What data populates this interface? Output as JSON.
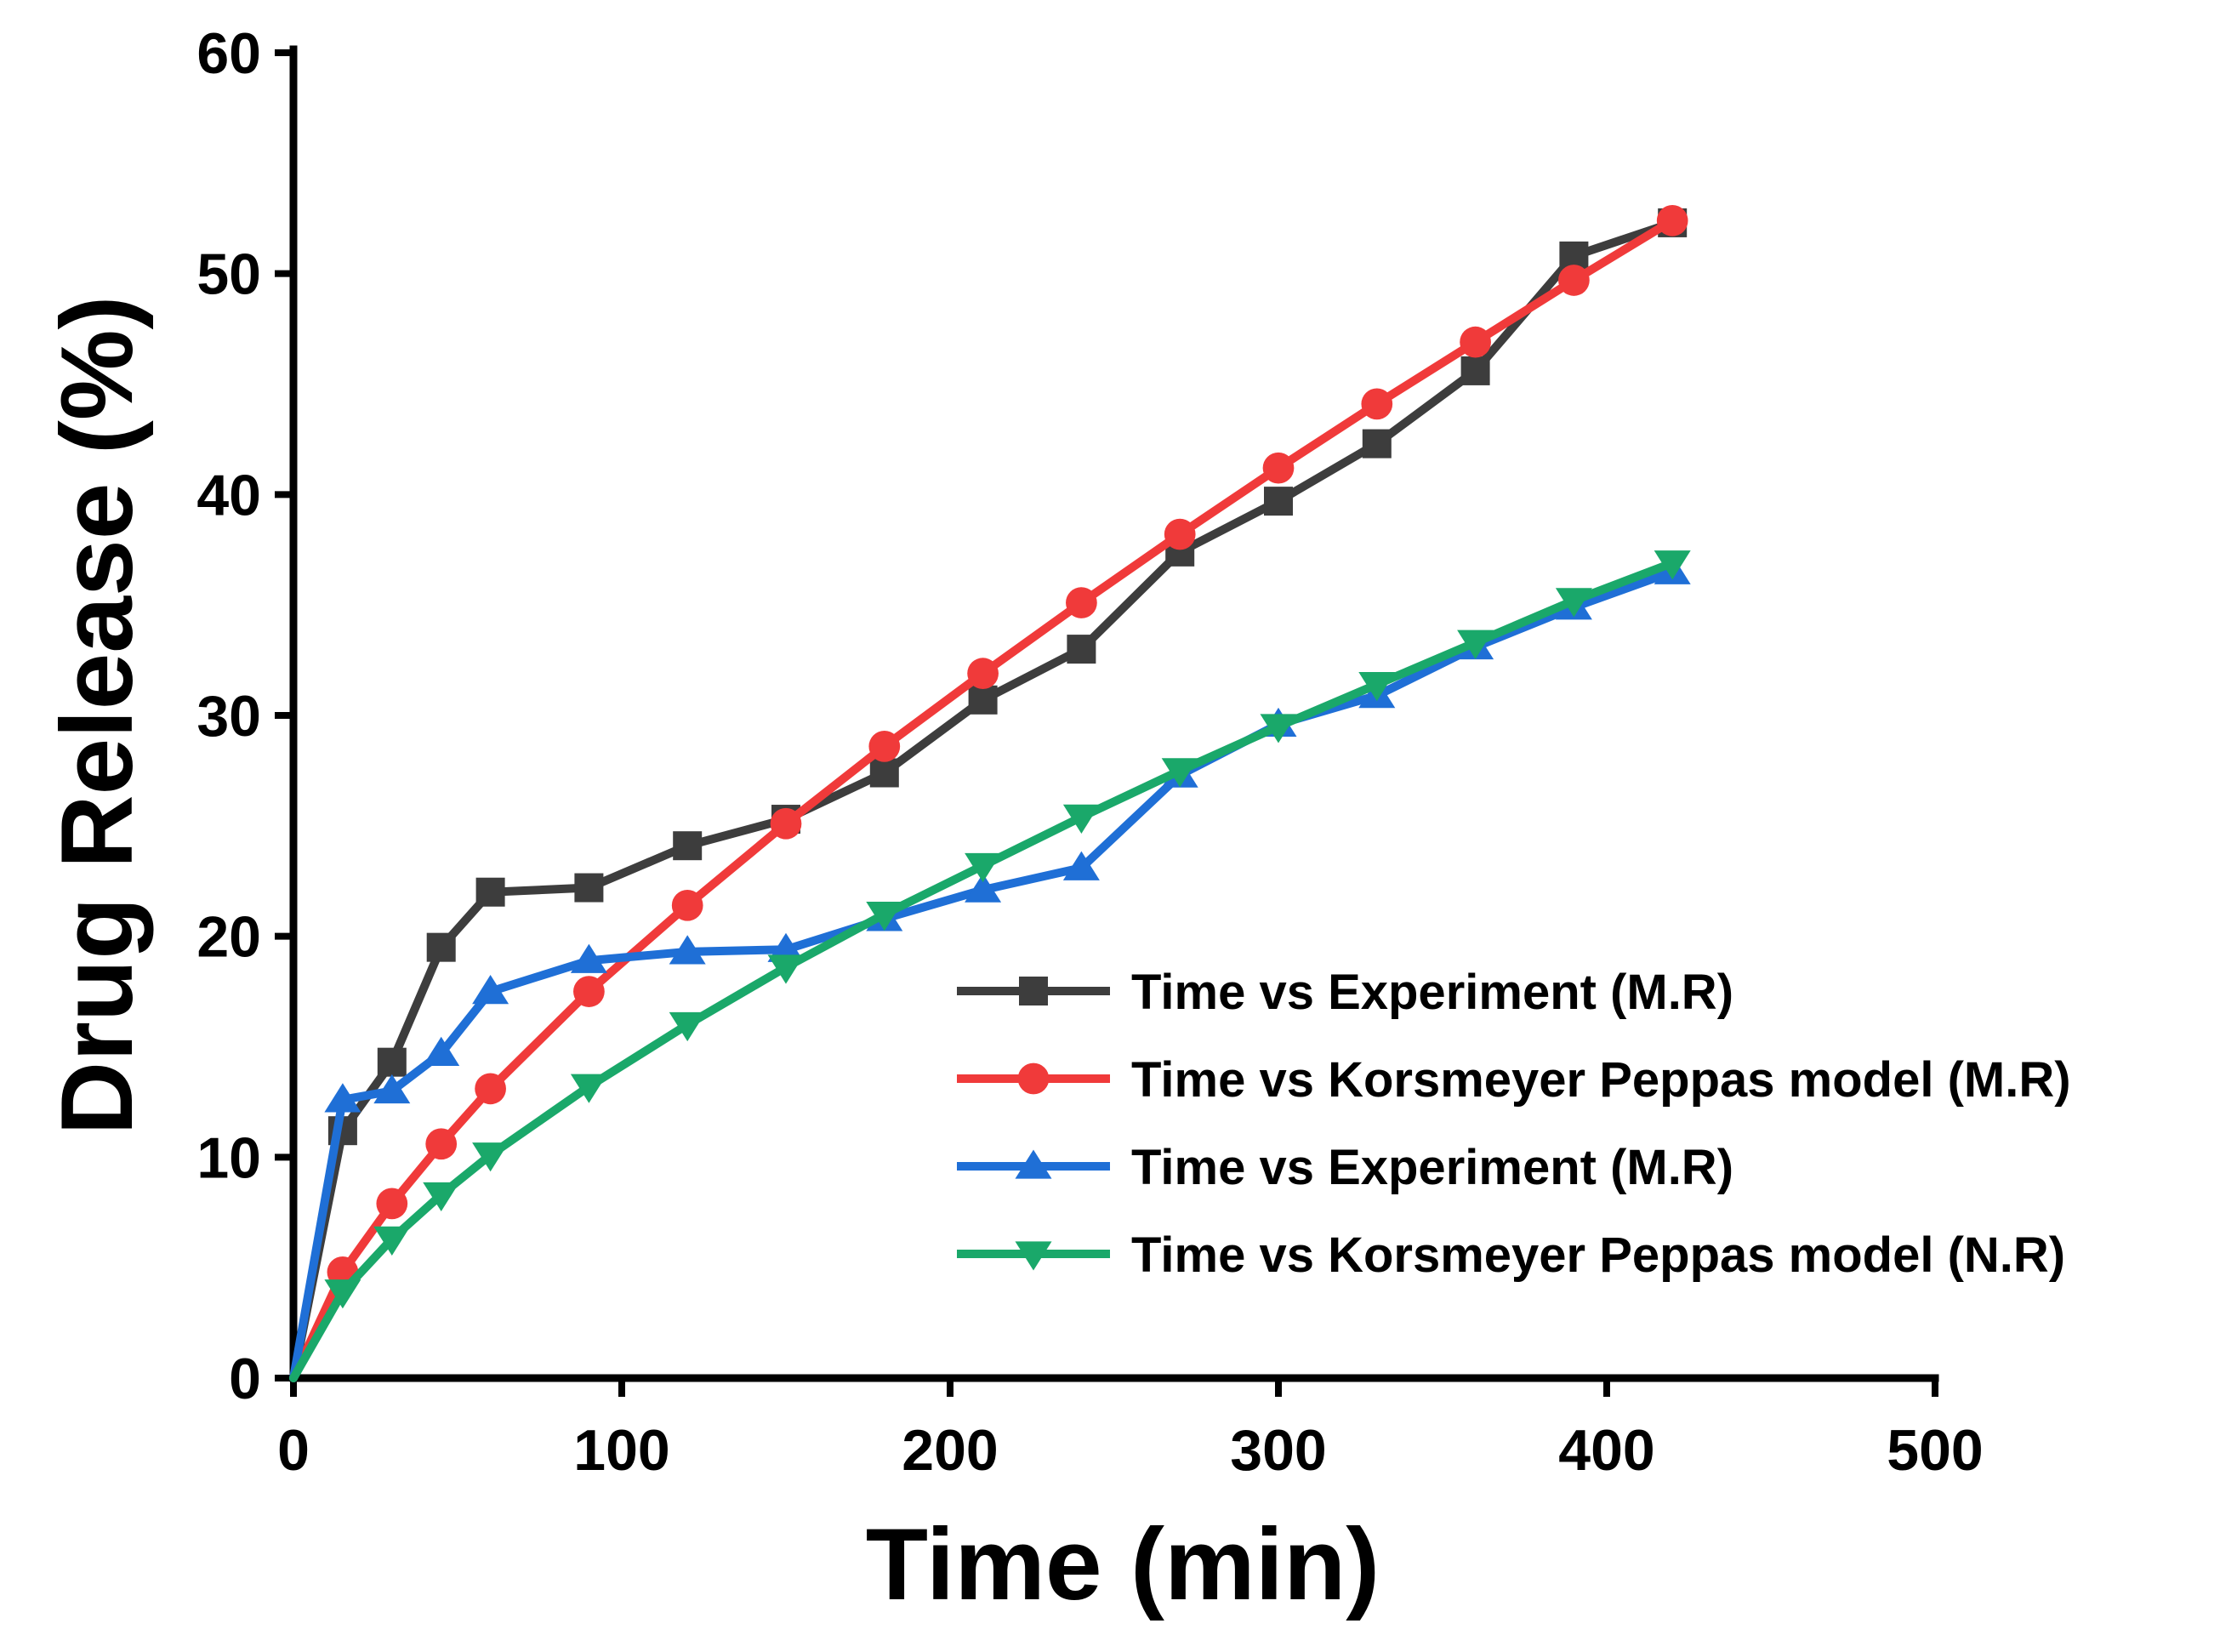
{
  "chart_data": {
    "type": "line",
    "title": "",
    "xlabel": "Time (min)",
    "ylabel": "Drug Release (%)",
    "xlim": [
      0,
      500
    ],
    "ylim": [
      0,
      60
    ],
    "xticks": [
      0,
      100,
      200,
      300,
      400,
      500
    ],
    "yticks": [
      0,
      10,
      20,
      30,
      40,
      50,
      60
    ],
    "grid": false,
    "legend_position": "bottom-right",
    "series": [
      {
        "name": "Time vs Experiment (M.R)",
        "color": "#3d3d3d",
        "marker": "square",
        "x": [
          0,
          15,
          30,
          45,
          60,
          90,
          120,
          150,
          180,
          210,
          240,
          270,
          300,
          330,
          360,
          390,
          420
        ],
        "y": [
          0,
          11.2,
          14.3,
          19.5,
          22.0,
          22.2,
          24.1,
          25.3,
          27.4,
          30.7,
          33.0,
          37.4,
          39.7,
          42.3,
          45.6,
          50.8,
          52.3
        ]
      },
      {
        "name": "Time vs Korsmeyer Peppas model (M.R)",
        "color": "#f03a3a",
        "marker": "circle",
        "x": [
          0,
          15,
          30,
          45,
          60,
          90,
          120,
          150,
          180,
          210,
          240,
          270,
          300,
          330,
          360,
          390,
          420
        ],
        "y": [
          0,
          4.8,
          7.9,
          10.6,
          13.1,
          17.5,
          21.4,
          25.1,
          28.6,
          31.9,
          35.1,
          38.2,
          41.2,
          44.1,
          46.9,
          49.7,
          52.4
        ]
      },
      {
        "name": "Time vs Experiment (M.R)",
        "color": "#1f6fd6",
        "marker": "triangle-up",
        "x": [
          0,
          15,
          30,
          45,
          60,
          90,
          120,
          150,
          180,
          210,
          240,
          270,
          300,
          330,
          360,
          390,
          420
        ],
        "y": [
          0,
          12.6,
          13.0,
          14.7,
          17.5,
          18.9,
          19.3,
          19.4,
          20.8,
          22.1,
          23.1,
          27.3,
          29.6,
          30.9,
          33.1,
          34.9,
          36.5
        ]
      },
      {
        "name": "Time vs Korsmeyer Peppas model (N.R)",
        "color": "#1aa86a",
        "marker": "triangle-down",
        "x": [
          0,
          15,
          30,
          45,
          60,
          90,
          120,
          150,
          180,
          210,
          240,
          270,
          300,
          330,
          360,
          390,
          420
        ],
        "y": [
          0,
          3.9,
          6.3,
          8.3,
          10.1,
          13.2,
          16.0,
          18.6,
          21.0,
          23.2,
          25.4,
          27.5,
          29.5,
          31.4,
          33.3,
          35.2,
          36.9
        ]
      }
    ]
  }
}
